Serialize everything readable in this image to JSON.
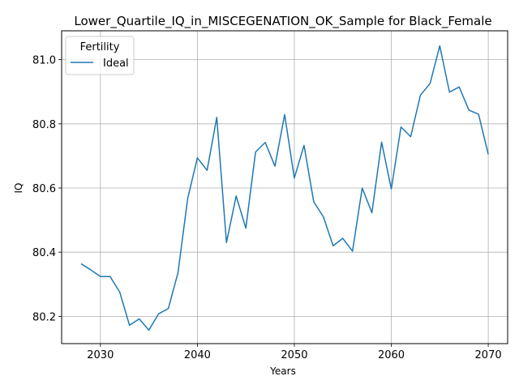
{
  "chart_data": {
    "type": "line",
    "title": "Lower_Quartile_IQ_in_MISCEGENATION_OK_Sample for Black_Female",
    "xlabel": "Years",
    "ylabel": "IQ",
    "xlim": [
      2026,
      2072
    ],
    "ylim": [
      80.115,
      81.09
    ],
    "x_ticks": [
      2030,
      2040,
      2050,
      2060,
      2070
    ],
    "y_ticks": [
      80.2,
      80.4,
      80.6,
      80.8,
      81.0
    ],
    "x_tick_labels": [
      "2030",
      "2040",
      "2050",
      "2060",
      "2070"
    ],
    "y_tick_labels": [
      "80.2",
      "80.4",
      "80.6",
      "80.8",
      "81.0"
    ],
    "grid": true,
    "legend": {
      "title": "Fertility",
      "position": "top-left",
      "entries": [
        "Ideal"
      ]
    },
    "series": [
      {
        "name": "Ideal",
        "color": "#1f77b4",
        "x": [
          2028,
          2029,
          2030,
          2031,
          2032,
          2033,
          2034,
          2035,
          2036,
          2037,
          2038,
          2039,
          2040,
          2041,
          2042,
          2043,
          2044,
          2045,
          2046,
          2047,
          2048,
          2049,
          2050,
          2051,
          2052,
          2053,
          2054,
          2055,
          2056,
          2057,
          2058,
          2059,
          2060,
          2061,
          2062,
          2063,
          2064,
          2065,
          2066,
          2067,
          2068,
          2069,
          2070
        ],
        "values": [
          80.364,
          80.345,
          80.324,
          80.324,
          80.275,
          80.172,
          80.192,
          80.157,
          80.208,
          80.224,
          80.336,
          80.567,
          80.694,
          80.655,
          80.82,
          80.43,
          80.575,
          80.475,
          80.712,
          80.742,
          80.668,
          80.829,
          80.631,
          80.733,
          80.557,
          80.51,
          80.42,
          80.443,
          80.403,
          80.6,
          80.523,
          80.743,
          80.597,
          80.79,
          80.76,
          80.889,
          80.926,
          81.043,
          80.899,
          80.915,
          80.843,
          80.83,
          80.705
        ]
      }
    ]
  }
}
